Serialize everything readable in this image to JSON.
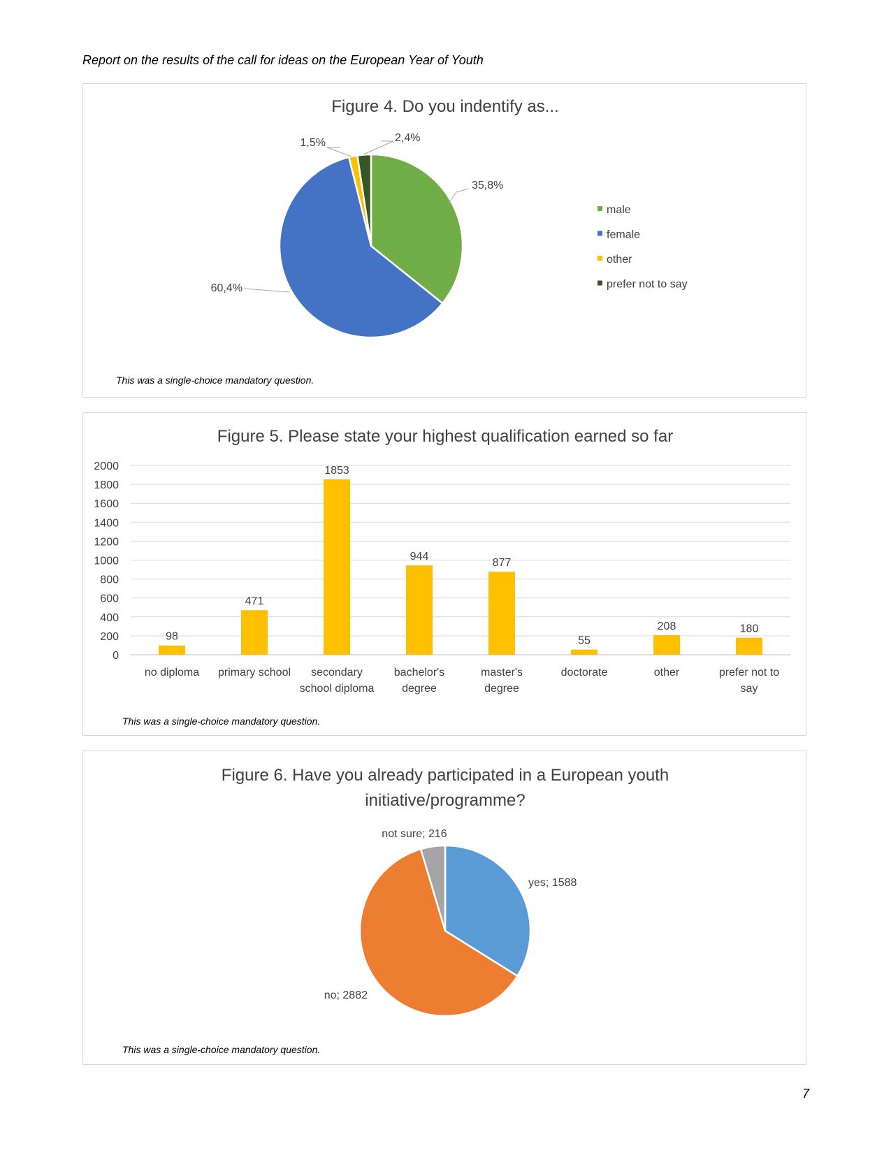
{
  "header": "Report on the results of the call for ideas on the European Year of Youth",
  "page_number": "7",
  "chart_data": [
    {
      "type": "pie",
      "title": "Figure 4. Do you indentify as...",
      "labels": [
        "male",
        "female",
        "other",
        "prefer not to say"
      ],
      "values": [
        35.8,
        60.4,
        1.5,
        2.4
      ],
      "data_labels": [
        "35,8%",
        "60,4%",
        "1,5%",
        "2,4%"
      ],
      "colors": [
        "#70ad47",
        "#4472c4",
        "#ffc000",
        "#375623"
      ],
      "legend_position": "right",
      "note": "This was a single-choice mandatory question."
    },
    {
      "type": "bar",
      "title": "Figure 5. Please state your highest qualification earned so far",
      "categories": [
        "no diploma",
        "primary school",
        "secondary school diploma",
        "bachelor's degree",
        "master's degree",
        "doctorate",
        "other",
        "prefer not to say"
      ],
      "category_lines": [
        [
          "no diploma"
        ],
        [
          "primary school"
        ],
        [
          "secondary",
          "school diploma"
        ],
        [
          "bachelor's",
          "degree"
        ],
        [
          "master's",
          "degree"
        ],
        [
          "doctorate"
        ],
        [
          "other"
        ],
        [
          "prefer not to",
          "say"
        ]
      ],
      "values": [
        98,
        471,
        1853,
        944,
        877,
        55,
        208,
        180
      ],
      "ylim": [
        0,
        2000
      ],
      "yticks": [
        0,
        200,
        400,
        600,
        800,
        1000,
        1200,
        1400,
        1600,
        1800,
        2000
      ],
      "color": "#ffc000",
      "grid": true,
      "note": "This was a single-choice mandatory question."
    },
    {
      "type": "pie",
      "title": "Figure 6. Have you already participated in a European youth initiative/programme?",
      "title_lines": [
        "Figure 6. Have you already participated in a European youth",
        "initiative/programme?"
      ],
      "labels": [
        "yes",
        "no",
        "not sure"
      ],
      "values": [
        1588,
        2882,
        216
      ],
      "data_labels": [
        "yes; 1588",
        "no; 2882",
        "not sure; 216"
      ],
      "colors": [
        "#5b9bd5",
        "#ed7d31",
        "#a5a5a5"
      ],
      "note": "This was a single-choice mandatory question."
    }
  ]
}
